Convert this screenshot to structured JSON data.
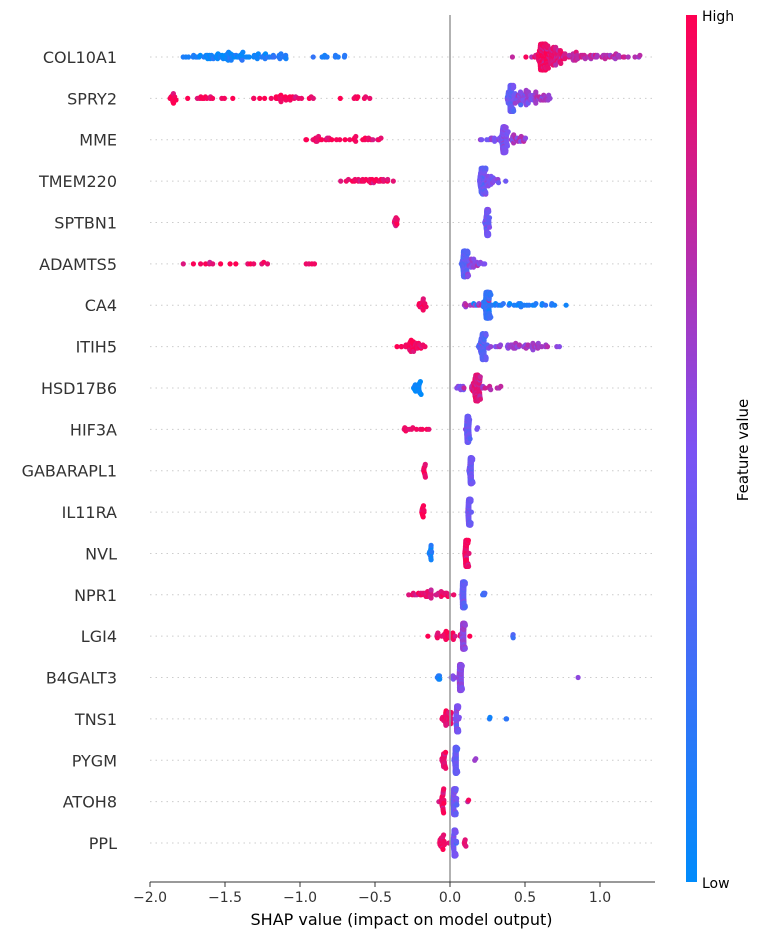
{
  "chart_data": {
    "type": "scatter",
    "subtype": "shap-beeswarm",
    "title": "",
    "xlabel": "SHAP value (impact on model output)",
    "ylabel": "",
    "xlim": [
      -2.0,
      1.35
    ],
    "xticks": [
      "−2.0",
      "−1.5",
      "−1.0",
      "−0.5",
      "0.0",
      "0.5",
      "1.0"
    ],
    "xtick_values": [
      -2.0,
      -1.5,
      -1.0,
      -0.5,
      0.0,
      0.5,
      1.0
    ],
    "grid": false,
    "colorbar": {
      "title": "Feature value",
      "high_label": "High",
      "low_label": "Low",
      "high_color": "#ff0052",
      "low_color": "#008bfb"
    },
    "features": [
      {
        "name": "COL10A1",
        "clusters": [
          {
            "c": 0.62,
            "s": 0.015,
            "n": 120,
            "v": 0.95
          },
          {
            "c": 0.68,
            "s": 0.05,
            "n": 70,
            "v": 0.9
          },
          {
            "c": 0.85,
            "s": 0.15,
            "n": 55,
            "v": 0.75
          },
          {
            "c": 1.1,
            "s": 0.08,
            "n": 15,
            "v": 0.7
          },
          {
            "c": -1.5,
            "s": 0.12,
            "n": 60,
            "v": 0.05
          },
          {
            "c": -1.2,
            "s": 0.1,
            "n": 20,
            "v": 0.1
          },
          {
            "c": -0.8,
            "s": 0.08,
            "n": 10,
            "v": 0.15
          },
          {
            "c": -1.75,
            "s": 0.05,
            "n": 4,
            "v": 0.1
          }
        ]
      },
      {
        "name": "SPRY2",
        "clusters": [
          {
            "c": 0.41,
            "s": 0.01,
            "n": 130,
            "v": 0.4
          },
          {
            "c": 0.5,
            "s": 0.05,
            "n": 55,
            "v": 0.55
          },
          {
            "c": 0.6,
            "s": 0.04,
            "n": 20,
            "v": 0.65
          },
          {
            "c": -1.85,
            "s": 0.01,
            "n": 12,
            "v": 1.0
          },
          {
            "c": -1.65,
            "s": 0.1,
            "n": 14,
            "v": 0.95
          },
          {
            "c": -1.1,
            "s": 0.1,
            "n": 30,
            "v": 0.95
          },
          {
            "c": -0.6,
            "s": 0.12,
            "n": 8,
            "v": 0.95
          }
        ]
      },
      {
        "name": "MME",
        "clusters": [
          {
            "c": 0.36,
            "s": 0.01,
            "n": 80,
            "v": 0.5
          },
          {
            "c": 0.36,
            "s": 0.06,
            "n": 35,
            "v": 0.55
          },
          {
            "c": 0.45,
            "s": 0.04,
            "n": 12,
            "v": 0.7
          },
          {
            "c": -0.9,
            "s": 0.07,
            "n": 20,
            "v": 0.95
          },
          {
            "c": -0.6,
            "s": 0.08,
            "n": 16,
            "v": 0.95
          }
        ]
      },
      {
        "name": "TMEM220",
        "clusters": [
          {
            "c": 0.22,
            "s": 0.01,
            "n": 100,
            "v": 0.4
          },
          {
            "c": 0.28,
            "s": 0.04,
            "n": 25,
            "v": 0.5
          },
          {
            "c": -0.55,
            "s": 0.08,
            "n": 30,
            "v": 0.95
          }
        ]
      },
      {
        "name": "SPTBN1",
        "clusters": [
          {
            "c": 0.25,
            "s": 0.005,
            "n": 150,
            "v": 0.45
          },
          {
            "c": -0.36,
            "s": 0.005,
            "n": 10,
            "v": 0.95
          }
        ]
      },
      {
        "name": "ADAMTS5",
        "clusters": [
          {
            "c": 0.1,
            "s": 0.01,
            "n": 100,
            "v": 0.35
          },
          {
            "c": 0.15,
            "s": 0.03,
            "n": 25,
            "v": 0.55
          },
          {
            "c": -1.6,
            "s": 0.15,
            "n": 10,
            "v": 0.95
          },
          {
            "c": -1.3,
            "s": 0.05,
            "n": 6,
            "v": 0.95
          },
          {
            "c": -0.9,
            "s": 0.07,
            "n": 4,
            "v": 0.95
          }
        ]
      },
      {
        "name": "CA4",
        "clusters": [
          {
            "c": 0.25,
            "s": 0.01,
            "n": 110,
            "v": 0.2
          },
          {
            "c": 0.45,
            "s": 0.12,
            "n": 30,
            "v": 0.1
          },
          {
            "c": 0.15,
            "s": 0.05,
            "n": 12,
            "v": 0.7
          },
          {
            "c": -0.18,
            "s": 0.02,
            "n": 14,
            "v": 0.95
          },
          {
            "c": 0.77,
            "s": 0.01,
            "n": 1,
            "v": 0.05
          }
        ]
      },
      {
        "name": "ITIH5",
        "clusters": [
          {
            "c": 0.22,
            "s": 0.01,
            "n": 100,
            "v": 0.35
          },
          {
            "c": 0.45,
            "s": 0.1,
            "n": 45,
            "v": 0.6
          },
          {
            "c": -0.25,
            "s": 0.04,
            "n": 35,
            "v": 0.95
          }
        ]
      },
      {
        "name": "HSD17B6",
        "clusters": [
          {
            "c": 0.18,
            "s": 0.01,
            "n": 90,
            "v": 0.9
          },
          {
            "c": 0.25,
            "s": 0.06,
            "n": 20,
            "v": 0.75
          },
          {
            "c": 0.05,
            "s": 0.04,
            "n": 8,
            "v": 0.5
          },
          {
            "c": -0.22,
            "s": 0.02,
            "n": 20,
            "v": 0.05
          }
        ]
      },
      {
        "name": "HIF3A",
        "clusters": [
          {
            "c": 0.12,
            "s": 0.005,
            "n": 120,
            "v": 0.45
          },
          {
            "c": -0.25,
            "s": 0.04,
            "n": 12,
            "v": 0.95
          },
          {
            "c": 0.17,
            "s": 0.01,
            "n": 2,
            "v": 0.5
          }
        ]
      },
      {
        "name": "GABARAPL1",
        "clusters": [
          {
            "c": 0.14,
            "s": 0.005,
            "n": 130,
            "v": 0.45
          },
          {
            "c": -0.17,
            "s": 0.005,
            "n": 10,
            "v": 0.95
          }
        ]
      },
      {
        "name": "IL11RA",
        "clusters": [
          {
            "c": 0.13,
            "s": 0.005,
            "n": 130,
            "v": 0.45
          },
          {
            "c": -0.18,
            "s": 0.005,
            "n": 10,
            "v": 0.95
          }
        ]
      },
      {
        "name": "NVL",
        "clusters": [
          {
            "c": 0.11,
            "s": 0.005,
            "n": 130,
            "v": 0.95
          },
          {
            "c": -0.13,
            "s": 0.005,
            "n": 12,
            "v": 0.1
          }
        ]
      },
      {
        "name": "NPR1",
        "clusters": [
          {
            "c": 0.09,
            "s": 0.005,
            "n": 120,
            "v": 0.4
          },
          {
            "c": -0.1,
            "s": 0.08,
            "n": 40,
            "v": 0.9
          },
          {
            "c": 0.23,
            "s": 0.01,
            "n": 4,
            "v": 0.3
          }
        ]
      },
      {
        "name": "LGI4",
        "clusters": [
          {
            "c": 0.09,
            "s": 0.005,
            "n": 110,
            "v": 0.6
          },
          {
            "c": -0.03,
            "s": 0.04,
            "n": 25,
            "v": 0.95
          },
          {
            "c": 0.42,
            "s": 0.003,
            "n": 3,
            "v": 0.3
          },
          {
            "c": 0.14,
            "s": 0.01,
            "n": 1,
            "v": 0.95
          }
        ]
      },
      {
        "name": "B4GALT3",
        "clusters": [
          {
            "c": 0.07,
            "s": 0.005,
            "n": 130,
            "v": 0.55
          },
          {
            "c": -0.07,
            "s": 0.01,
            "n": 6,
            "v": 0.1
          },
          {
            "c": 0.02,
            "s": 0.01,
            "n": 5,
            "v": 0.5
          },
          {
            "c": 0.85,
            "s": 0.003,
            "n": 1,
            "v": 0.5
          }
        ]
      },
      {
        "name": "TNS1",
        "clusters": [
          {
            "c": 0.05,
            "s": 0.005,
            "n": 110,
            "v": 0.5
          },
          {
            "c": -0.02,
            "s": 0.02,
            "n": 30,
            "v": 0.9
          },
          {
            "c": 0.27,
            "s": 0.005,
            "n": 2,
            "v": 0.15
          },
          {
            "c": 0.38,
            "s": 0.005,
            "n": 2,
            "v": 0.15
          }
        ]
      },
      {
        "name": "PYGM",
        "clusters": [
          {
            "c": 0.04,
            "s": 0.005,
            "n": 120,
            "v": 0.4
          },
          {
            "c": -0.04,
            "s": 0.01,
            "n": 20,
            "v": 0.95
          },
          {
            "c": 0.17,
            "s": 0.005,
            "n": 2,
            "v": 0.6
          }
        ]
      },
      {
        "name": "ATOH8",
        "clusters": [
          {
            "c": 0.03,
            "s": 0.005,
            "n": 120,
            "v": 0.45
          },
          {
            "c": -0.05,
            "s": 0.01,
            "n": 20,
            "v": 0.95
          },
          {
            "c": 0.12,
            "s": 0.005,
            "n": 2,
            "v": 0.8
          }
        ]
      },
      {
        "name": "PPL",
        "clusters": [
          {
            "c": 0.03,
            "s": 0.005,
            "n": 120,
            "v": 0.45
          },
          {
            "c": -0.05,
            "s": 0.01,
            "n": 20,
            "v": 0.95
          },
          {
            "c": 0.1,
            "s": 0.005,
            "n": 5,
            "v": 0.9
          }
        ]
      }
    ]
  }
}
